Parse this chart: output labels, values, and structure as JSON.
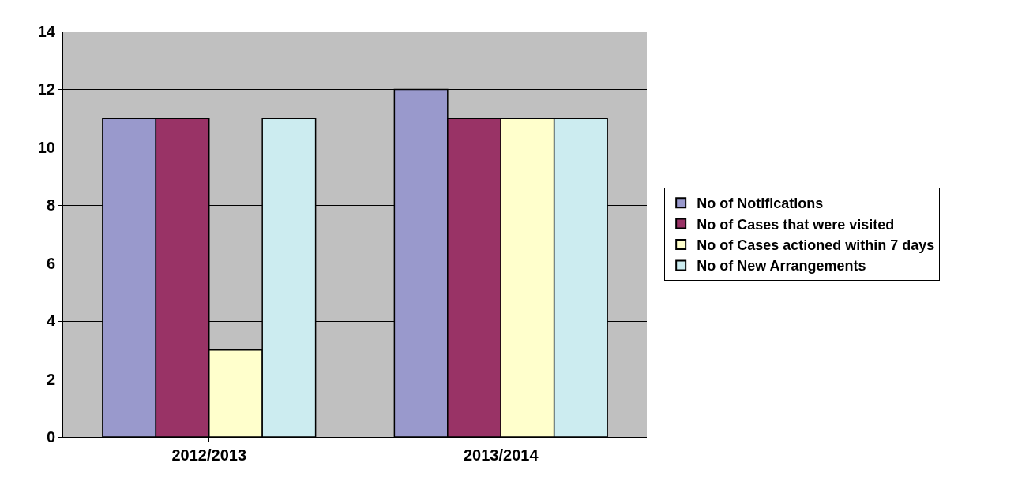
{
  "chart_data": {
    "type": "bar",
    "categories": [
      "2012/2013",
      "2013/2014"
    ],
    "series": [
      {
        "name": "No of Notifications",
        "color": "#9999cc",
        "values": [
          11,
          12
        ]
      },
      {
        "name": "No of Cases that were visited",
        "color": "#993366",
        "values": [
          11,
          11
        ]
      },
      {
        "name": "No of Cases actioned within 7 days",
        "color": "#ffffcc",
        "values": [
          3,
          11
        ]
      },
      {
        "name": "No of New Arrangements",
        "color": "#ccecf0",
        "values": [
          11,
          11
        ]
      }
    ],
    "ylim": [
      0,
      14
    ],
    "yticks": [
      0,
      2,
      4,
      6,
      8,
      10,
      12,
      14
    ],
    "grid": "y",
    "legend": "right"
  }
}
